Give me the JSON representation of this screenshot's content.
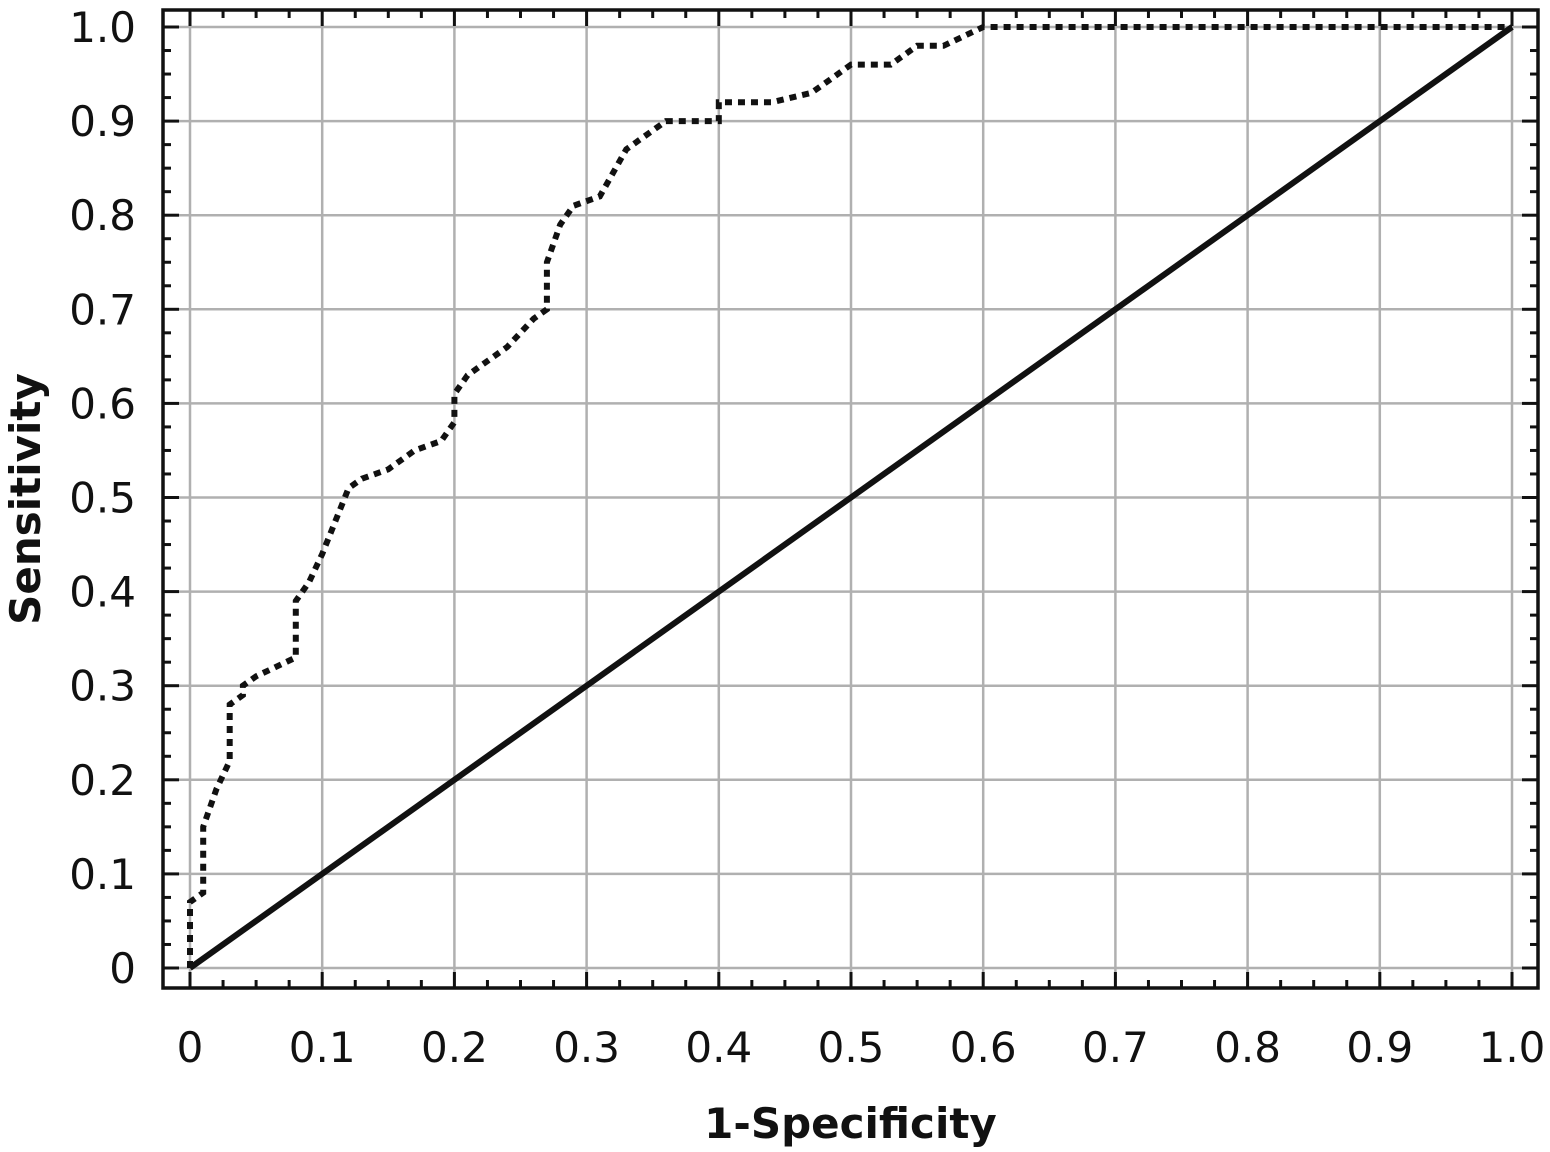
{
  "chart_data": {
    "type": "line",
    "title": "",
    "xlabel": "1-Specificity",
    "ylabel": "Sensitivity",
    "xlim": [
      0,
      1.0
    ],
    "ylim": [
      0,
      1.0
    ],
    "x_ticks": [
      "0",
      "0.1",
      "0.2",
      "0.3",
      "0.4",
      "0.5",
      "0.6",
      "0.7",
      "0.8",
      "0.9",
      "1.0"
    ],
    "y_ticks": [
      "0",
      "0.1",
      "0.2",
      "0.3",
      "0.4",
      "0.5",
      "0.6",
      "0.7",
      "0.8",
      "0.9",
      "1.0"
    ],
    "grid": true,
    "legend": "none",
    "series": [
      {
        "style": "dotted",
        "color": "#111111",
        "x": [
          0,
          0,
          0.01,
          0.01,
          0.02,
          0.03,
          0.03,
          0.04,
          0.04,
          0.05,
          0.08,
          0.08,
          0.09,
          0.1,
          0.12,
          0.13,
          0.15,
          0.17,
          0.19,
          0.2,
          0.2,
          0.21,
          0.24,
          0.26,
          0.27,
          0.27,
          0.28,
          0.29,
          0.31,
          0.33,
          0.36,
          0.4,
          0.4,
          0.44,
          0.47,
          0.48,
          0.5,
          0.53,
          0.55,
          0.57,
          0.6,
          0.7,
          0.8,
          0.9,
          1.0
        ],
        "y": [
          0,
          0.07,
          0.08,
          0.15,
          0.19,
          0.22,
          0.28,
          0.29,
          0.3,
          0.31,
          0.33,
          0.39,
          0.41,
          0.44,
          0.51,
          0.52,
          0.53,
          0.55,
          0.56,
          0.58,
          0.61,
          0.63,
          0.66,
          0.69,
          0.7,
          0.75,
          0.79,
          0.81,
          0.82,
          0.87,
          0.9,
          0.9,
          0.92,
          0.92,
          0.93,
          0.94,
          0.96,
          0.96,
          0.98,
          0.98,
          1.0,
          1.0,
          1.0,
          1.0,
          1.0
        ]
      },
      {
        "style": "solid",
        "color": "#111111",
        "x": [
          0,
          1.0
        ],
        "y": [
          0,
          1.0
        ]
      }
    ]
  }
}
